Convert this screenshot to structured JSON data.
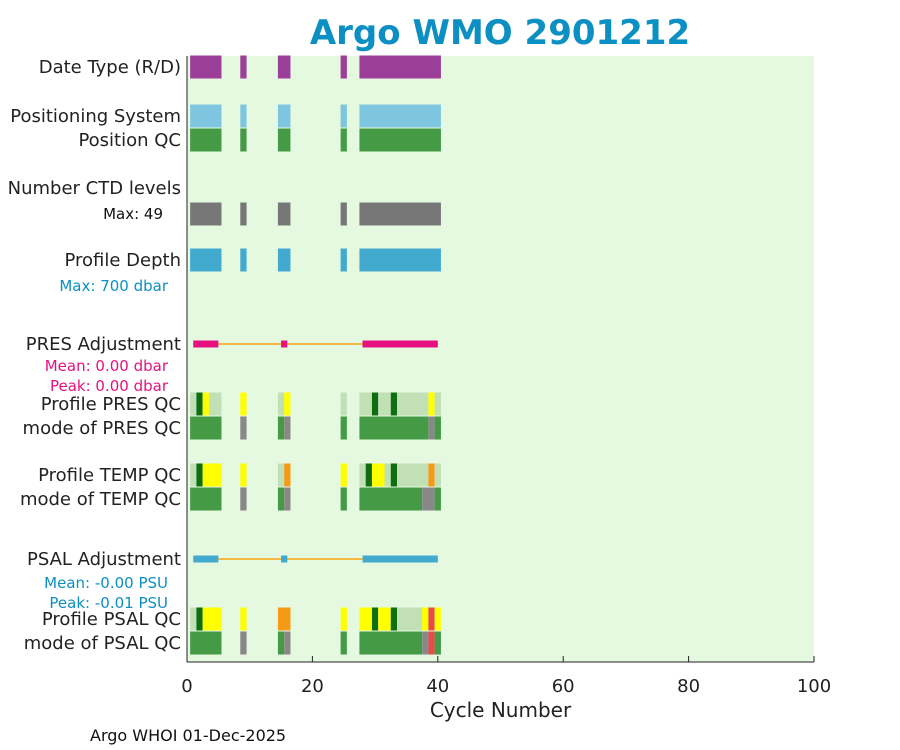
{
  "colors": {
    "plot_bg": "#e5f8e0",
    "title": "#0c8fc2",
    "purple": "#9b3f9a",
    "lightblue": "#7ec6e0",
    "green": "#459a45",
    "gray": "#777777",
    "blue": "#42aacf",
    "magenta": "#e6117e",
    "orange_line": "#f6b944",
    "yellow": "#ffff00",
    "darkgreen": "#0f6e12",
    "palegreen": "#c2e0b6",
    "orange": "#f59a17",
    "red": "#e84a4a",
    "midgray": "#888888"
  },
  "chart_data": {
    "type": "timeline",
    "title": "Argo WMO 2901212",
    "xlabel": "Cycle Number",
    "xlim": [
      0,
      100
    ],
    "xticks": [
      0,
      20,
      40,
      60,
      80,
      100
    ],
    "footer": "Argo WHOI 01-Dec-2025",
    "rows": [
      {
        "label": "Date Type (R/D)",
        "segments": [
          [
            0.5,
            5.5,
            "purple"
          ],
          [
            8.5,
            9.5,
            "purple"
          ],
          [
            14.5,
            16.5,
            "purple"
          ],
          [
            24.5,
            25.5,
            "purple"
          ],
          [
            27.5,
            40.5,
            "purple"
          ]
        ]
      },
      {
        "label": "Positioning System",
        "segments": [
          [
            0.5,
            5.5,
            "lightblue"
          ],
          [
            8.5,
            9.5,
            "lightblue"
          ],
          [
            14.5,
            16.5,
            "lightblue"
          ],
          [
            24.5,
            25.5,
            "lightblue"
          ],
          [
            27.5,
            40.5,
            "lightblue"
          ]
        ]
      },
      {
        "label": "Position QC",
        "segments": [
          [
            0.5,
            5.5,
            "green"
          ],
          [
            8.5,
            9.5,
            "green"
          ],
          [
            14.5,
            16.5,
            "green"
          ],
          [
            24.5,
            25.5,
            "green"
          ],
          [
            27.5,
            40.5,
            "green"
          ]
        ]
      },
      {
        "label": "Number CTD levels",
        "segments": []
      },
      {
        "label": "Max: 49",
        "sublabel": true,
        "segments": [
          [
            0.5,
            5.5,
            "gray"
          ],
          [
            8.5,
            9.5,
            "gray"
          ],
          [
            14.5,
            16.5,
            "gray"
          ],
          [
            24.5,
            25.5,
            "gray"
          ],
          [
            27.5,
            40.5,
            "gray"
          ]
        ]
      },
      {
        "label": "Profile Depth",
        "segments": [
          [
            0.5,
            5.5,
            "blue"
          ],
          [
            8.5,
            9.5,
            "blue"
          ],
          [
            14.5,
            16.5,
            "blue"
          ],
          [
            24.5,
            25.5,
            "blue"
          ],
          [
            27.5,
            40.5,
            "blue"
          ]
        ]
      },
      {
        "label": "Max:  700 dbar",
        "sublabel": true,
        "color": "title",
        "segments": []
      },
      {
        "label": "PRES Adjustment",
        "segments": [],
        "line": {
          "from": 1,
          "to": 40,
          "color": "orange_line"
        },
        "markers": [
          [
            1,
            5,
            "magenta"
          ],
          [
            15,
            16,
            "magenta"
          ],
          [
            28,
            40,
            "magenta"
          ]
        ]
      },
      {
        "label": "Mean: 0.00 dbar",
        "sublabel": true,
        "color": "magenta",
        "segments": []
      },
      {
        "label": "Peak: 0.00 dbar",
        "sublabel": true,
        "color": "magenta",
        "segments": []
      },
      {
        "label": "Profile PRES QC",
        "segments": [
          [
            0.5,
            1.5,
            "palegreen"
          ],
          [
            1.5,
            2.5,
            "darkgreen"
          ],
          [
            2.5,
            3.5,
            "yellow"
          ],
          [
            3.5,
            5.5,
            "palegreen"
          ],
          [
            8.5,
            9.5,
            "yellow"
          ],
          [
            14.5,
            15.5,
            "palegreen"
          ],
          [
            15.5,
            16.5,
            "yellow"
          ],
          [
            24.5,
            25.5,
            "palegreen"
          ],
          [
            27.5,
            29.5,
            "palegreen"
          ],
          [
            29.5,
            30.5,
            "darkgreen"
          ],
          [
            30.5,
            32.5,
            "palegreen"
          ],
          [
            32.5,
            33.5,
            "darkgreen"
          ],
          [
            33.5,
            38.5,
            "palegreen"
          ],
          [
            38.5,
            39.5,
            "yellow"
          ],
          [
            39.5,
            40.5,
            "palegreen"
          ]
        ]
      },
      {
        "label": "mode of PRES QC",
        "segments": [
          [
            0.5,
            5.5,
            "green"
          ],
          [
            8.5,
            9.5,
            "midgray"
          ],
          [
            14.5,
            15.5,
            "green"
          ],
          [
            15.5,
            16.5,
            "midgray"
          ],
          [
            24.5,
            25.5,
            "green"
          ],
          [
            27.5,
            38.5,
            "green"
          ],
          [
            38.5,
            39.5,
            "midgray"
          ],
          [
            39.5,
            40.5,
            "green"
          ]
        ]
      },
      {
        "label": "Profile TEMP QC",
        "segments": [
          [
            0.5,
            1.5,
            "palegreen"
          ],
          [
            1.5,
            2.5,
            "darkgreen"
          ],
          [
            2.5,
            5.5,
            "yellow"
          ],
          [
            8.5,
            9.5,
            "yellow"
          ],
          [
            14.5,
            15.5,
            "palegreen"
          ],
          [
            15.5,
            16.5,
            "orange"
          ],
          [
            24.5,
            25.5,
            "yellow"
          ],
          [
            27.5,
            28.5,
            "palegreen"
          ],
          [
            28.5,
            29.5,
            "darkgreen"
          ],
          [
            29.5,
            31.5,
            "yellow"
          ],
          [
            31.5,
            32.5,
            "palegreen"
          ],
          [
            32.5,
            33.5,
            "darkgreen"
          ],
          [
            33.5,
            38.5,
            "palegreen"
          ],
          [
            38.5,
            39.5,
            "orange"
          ],
          [
            39.5,
            40.5,
            "palegreen"
          ]
        ]
      },
      {
        "label": "mode of TEMP QC",
        "segments": [
          [
            0.5,
            5.5,
            "green"
          ],
          [
            8.5,
            9.5,
            "midgray"
          ],
          [
            14.5,
            15.5,
            "green"
          ],
          [
            15.5,
            16.5,
            "midgray"
          ],
          [
            24.5,
            25.5,
            "green"
          ],
          [
            27.5,
            37.5,
            "green"
          ],
          [
            37.5,
            39.5,
            "midgray"
          ],
          [
            39.5,
            40.5,
            "green"
          ]
        ]
      },
      {
        "label": "PSAL Adjustment",
        "segments": [],
        "line": {
          "from": 1,
          "to": 40,
          "color": "orange_line"
        },
        "markers": [
          [
            1,
            5,
            "blue"
          ],
          [
            15,
            16,
            "blue"
          ],
          [
            28,
            40,
            "blue"
          ]
        ]
      },
      {
        "label": "Mean: -0.00 PSU",
        "sublabel": true,
        "color": "title",
        "segments": []
      },
      {
        "label": "Peak: -0.01 PSU",
        "sublabel": true,
        "color": "title",
        "segments": []
      },
      {
        "label": "Profile PSAL QC",
        "segments": [
          [
            0.5,
            1.5,
            "palegreen"
          ],
          [
            1.5,
            2.5,
            "darkgreen"
          ],
          [
            2.5,
            5.5,
            "yellow"
          ],
          [
            8.5,
            9.5,
            "yellow"
          ],
          [
            14.5,
            16.5,
            "orange"
          ],
          [
            24.5,
            25.5,
            "yellow"
          ],
          [
            27.5,
            29.5,
            "yellow"
          ],
          [
            29.5,
            30.5,
            "darkgreen"
          ],
          [
            30.5,
            32.5,
            "yellow"
          ],
          [
            32.5,
            33.5,
            "darkgreen"
          ],
          [
            33.5,
            37.5,
            "palegreen"
          ],
          [
            37.5,
            38.5,
            "yellow"
          ],
          [
            38.5,
            39.5,
            "red"
          ],
          [
            39.5,
            40.5,
            "yellow"
          ]
        ]
      },
      {
        "label": "mode of PSAL QC",
        "segments": [
          [
            0.5,
            5.5,
            "green"
          ],
          [
            8.5,
            9.5,
            "midgray"
          ],
          [
            14.5,
            15.5,
            "green"
          ],
          [
            15.5,
            16.5,
            "midgray"
          ],
          [
            24.5,
            25.5,
            "green"
          ],
          [
            27.5,
            37.5,
            "green"
          ],
          [
            37.5,
            38.5,
            "midgray"
          ],
          [
            38.5,
            39.5,
            "red"
          ],
          [
            39.5,
            40.5,
            "green"
          ]
        ]
      }
    ]
  }
}
